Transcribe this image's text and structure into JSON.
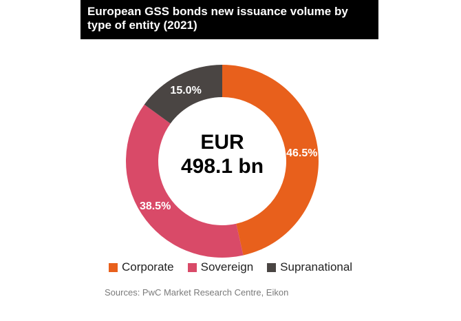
{
  "title": "European GSS bonds new issuance volume by type of entity (2021)",
  "center_label": {
    "line1": "EUR",
    "line2": "498.1 bn"
  },
  "source": "Sources: PwC Market Research Centre, Eikon",
  "chart_data": {
    "type": "pie",
    "donut": true,
    "title": "European GSS bonds new issuance volume by type of entity (2021)",
    "total_label": "EUR 498.1 bn",
    "legend_position": "bottom",
    "categories": [
      "Corporate",
      "Sovereign",
      "Supranational"
    ],
    "values": [
      46.5,
      38.5,
      15.0
    ],
    "data_labels": [
      "46.5%",
      "38.5%",
      "15.0%"
    ],
    "colors": [
      "#E8601C",
      "#D94A68",
      "#4A4543"
    ]
  }
}
